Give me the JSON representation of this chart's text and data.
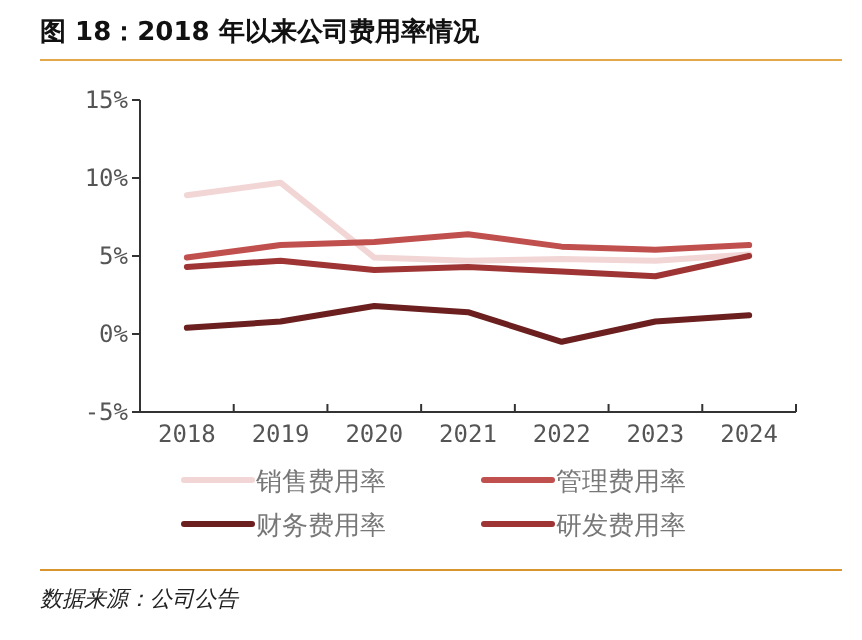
{
  "chart_data": {
    "type": "line",
    "title": "图 18：2018 年以来公司费用率情况",
    "categories": [
      "2018",
      "2019",
      "2020",
      "2021",
      "2022",
      "2023",
      "2024"
    ],
    "series": [
      {
        "name": "销售费用率",
        "color": "#f2d6d6",
        "values": [
          8.9,
          9.7,
          4.9,
          4.7,
          4.8,
          4.7,
          5.1
        ]
      },
      {
        "name": "管理费用率",
        "color": "#c0504d",
        "values": [
          4.9,
          5.7,
          5.9,
          6.4,
          5.6,
          5.4,
          5.7
        ]
      },
      {
        "name": "财务费用率",
        "color": "#6b1f1f",
        "values": [
          0.4,
          0.8,
          1.8,
          1.4,
          -0.5,
          0.8,
          1.2
        ]
      },
      {
        "name": "研发费用率",
        "color": "#9e3434",
        "values": [
          4.3,
          4.7,
          4.1,
          4.3,
          4.0,
          3.7,
          5.0
        ]
      }
    ],
    "ylim": [
      -5,
      15
    ],
    "yticks": [
      {
        "value": -5,
        "label": "-5%"
      },
      {
        "value": 0,
        "label": "0%"
      },
      {
        "value": 5,
        "label": "5%"
      },
      {
        "value": 10,
        "label": "10%"
      },
      {
        "value": 15,
        "label": "15%"
      }
    ],
    "legend": "bottom",
    "annotations": [
      "数据来源：公司公告"
    ]
  }
}
